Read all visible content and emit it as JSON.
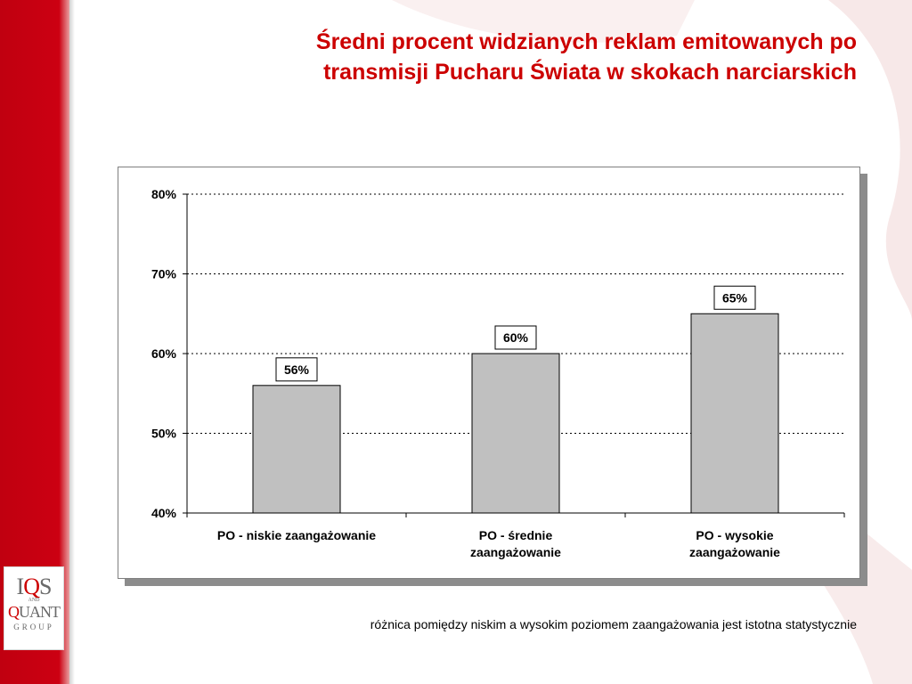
{
  "title": {
    "line1": "Średni procent widzianych reklam emitowanych po",
    "line2": "transmisji Pucharu Świata w skokach narciarskich"
  },
  "footnote": "różnica pomiędzy niskim a wysokim poziomem zaangażowania jest istotna statystycznie",
  "logo": {
    "line1": "IQS",
    "and": "AND",
    "line2": "QUANT",
    "group": "GROUP"
  },
  "colors": {
    "accent": "#cc0000",
    "bar_fill": "#c0c0c0",
    "bar_stroke": "#000000"
  },
  "chart_data": {
    "type": "bar",
    "categories": [
      [
        "PO - niskie zaangażowanie"
      ],
      [
        "PO - średnie",
        "zaangażowanie"
      ],
      [
        "PO - wysokie",
        "zaangażowanie"
      ]
    ],
    "values": [
      56,
      60,
      65
    ],
    "value_labels": [
      "56%",
      "60%",
      "65%"
    ],
    "title": "Średni procent widzianych reklam emitowanych po transmisji Pucharu Świata w skokach narciarskich",
    "xlabel": "",
    "ylabel": "",
    "ylim": [
      40,
      80
    ],
    "yticks": [
      40,
      50,
      60,
      70,
      80
    ],
    "ytick_labels": [
      "40%",
      "50%",
      "60%",
      "70%",
      "80%"
    ],
    "grid": true,
    "legend": "none"
  }
}
